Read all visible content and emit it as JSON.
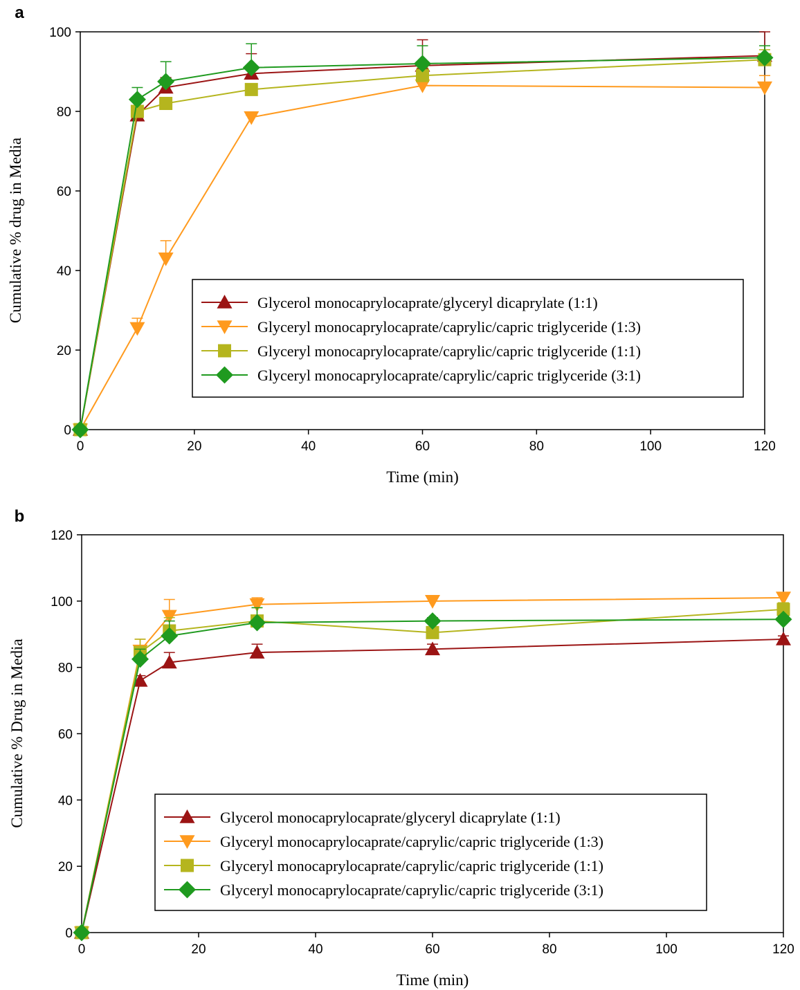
{
  "chart_data": [
    {
      "type": "line",
      "panel_label": "a",
      "xlabel": "Time (min)",
      "ylabel": "Cumulative % drug in Media",
      "xlim": [
        0,
        120
      ],
      "ylim": [
        0,
        100
      ],
      "xticks": [
        0,
        20,
        40,
        60,
        80,
        100,
        120
      ],
      "yticks": [
        0,
        20,
        40,
        60,
        80,
        100
      ],
      "x": [
        0,
        10,
        15,
        30,
        60,
        120
      ],
      "legend_placement": "center-right",
      "error_bars": true,
      "series": [
        {
          "name": "Glycerol monocaprylocaprate/glyceryl dicaprylate (1:1)",
          "marker": "triangle-up",
          "color": "#9b1414",
          "values": [
            0,
            79,
            86,
            89.5,
            91.5,
            94
          ],
          "errors": [
            0,
            3.5,
            2.5,
            5,
            6.5,
            6
          ]
        },
        {
          "name": "Glyceryl monocaprylocaprate/caprylic/capric triglyceride (1:3)",
          "marker": "triangle-down",
          "color": "#ff9a1e",
          "values": [
            0,
            25.5,
            43,
            78.5,
            86.5,
            86
          ],
          "errors": [
            0,
            2.5,
            4.5,
            0.5,
            3,
            3
          ]
        },
        {
          "name": "Glyceryl monocaprylocaprate/caprylic/capric triglyceride (1:1)",
          "marker": "square",
          "color": "#b5b51e",
          "values": [
            0,
            80,
            82,
            85.5,
            89,
            93
          ],
          "errors": [
            0,
            1.5,
            1.5,
            1.5,
            2,
            2.5
          ]
        },
        {
          "name": "Glyceryl monocaprylocaprate/caprylic/capric triglyceride (3:1)",
          "marker": "diamond",
          "color": "#1f9a1f",
          "values": [
            0,
            83,
            87.5,
            91,
            92,
            93.5
          ],
          "errors": [
            0,
            3,
            5,
            6,
            4.5,
            3
          ]
        }
      ]
    },
    {
      "type": "line",
      "panel_label": "b",
      "xlabel": "Time (min)",
      "ylabel": "Cumulative % Drug in Media",
      "xlim": [
        0,
        120
      ],
      "ylim": [
        0,
        120
      ],
      "xticks": [
        0,
        20,
        40,
        60,
        80,
        100,
        120
      ],
      "yticks": [
        0,
        20,
        40,
        60,
        80,
        100,
        120
      ],
      "x": [
        0,
        10,
        15,
        30,
        60,
        120
      ],
      "legend_placement": "bottom-center",
      "error_bars": true,
      "series": [
        {
          "name": "Glycerol monocaprylocaprate/glyceryl dicaprylate (1:1)",
          "marker": "triangle-up",
          "color": "#9b1414",
          "values": [
            0,
            76,
            81.5,
            84.5,
            85.5,
            88.5
          ],
          "errors": [
            0,
            1.5,
            3,
            2.5,
            1.5,
            1
          ]
        },
        {
          "name": "Glyceryl monocaprylocaprate/caprylic/capric triglyceride (1:3)",
          "marker": "triangle-down",
          "color": "#ff9a1e",
          "values": [
            0,
            85,
            95.5,
            99,
            100,
            101
          ],
          "errors": [
            0,
            3.5,
            5,
            2,
            1.5,
            1
          ]
        },
        {
          "name": "Glyceryl monocaprylocaprate/caprylic/capric triglyceride (1:1)",
          "marker": "square",
          "color": "#b5b51e",
          "values": [
            0,
            84.5,
            91,
            94,
            90.5,
            97.5
          ],
          "errors": [
            0,
            4,
            4,
            4,
            1.5,
            2
          ]
        },
        {
          "name": "Glyceryl monocaprylocaprate/caprylic/capric triglyceride (3:1)",
          "marker": "diamond",
          "color": "#1f9a1f",
          "values": [
            0,
            82.5,
            89.5,
            93.5,
            94,
            94.5
          ],
          "errors": [
            0,
            3,
            4.5,
            4.5,
            1,
            1
          ]
        }
      ]
    }
  ]
}
